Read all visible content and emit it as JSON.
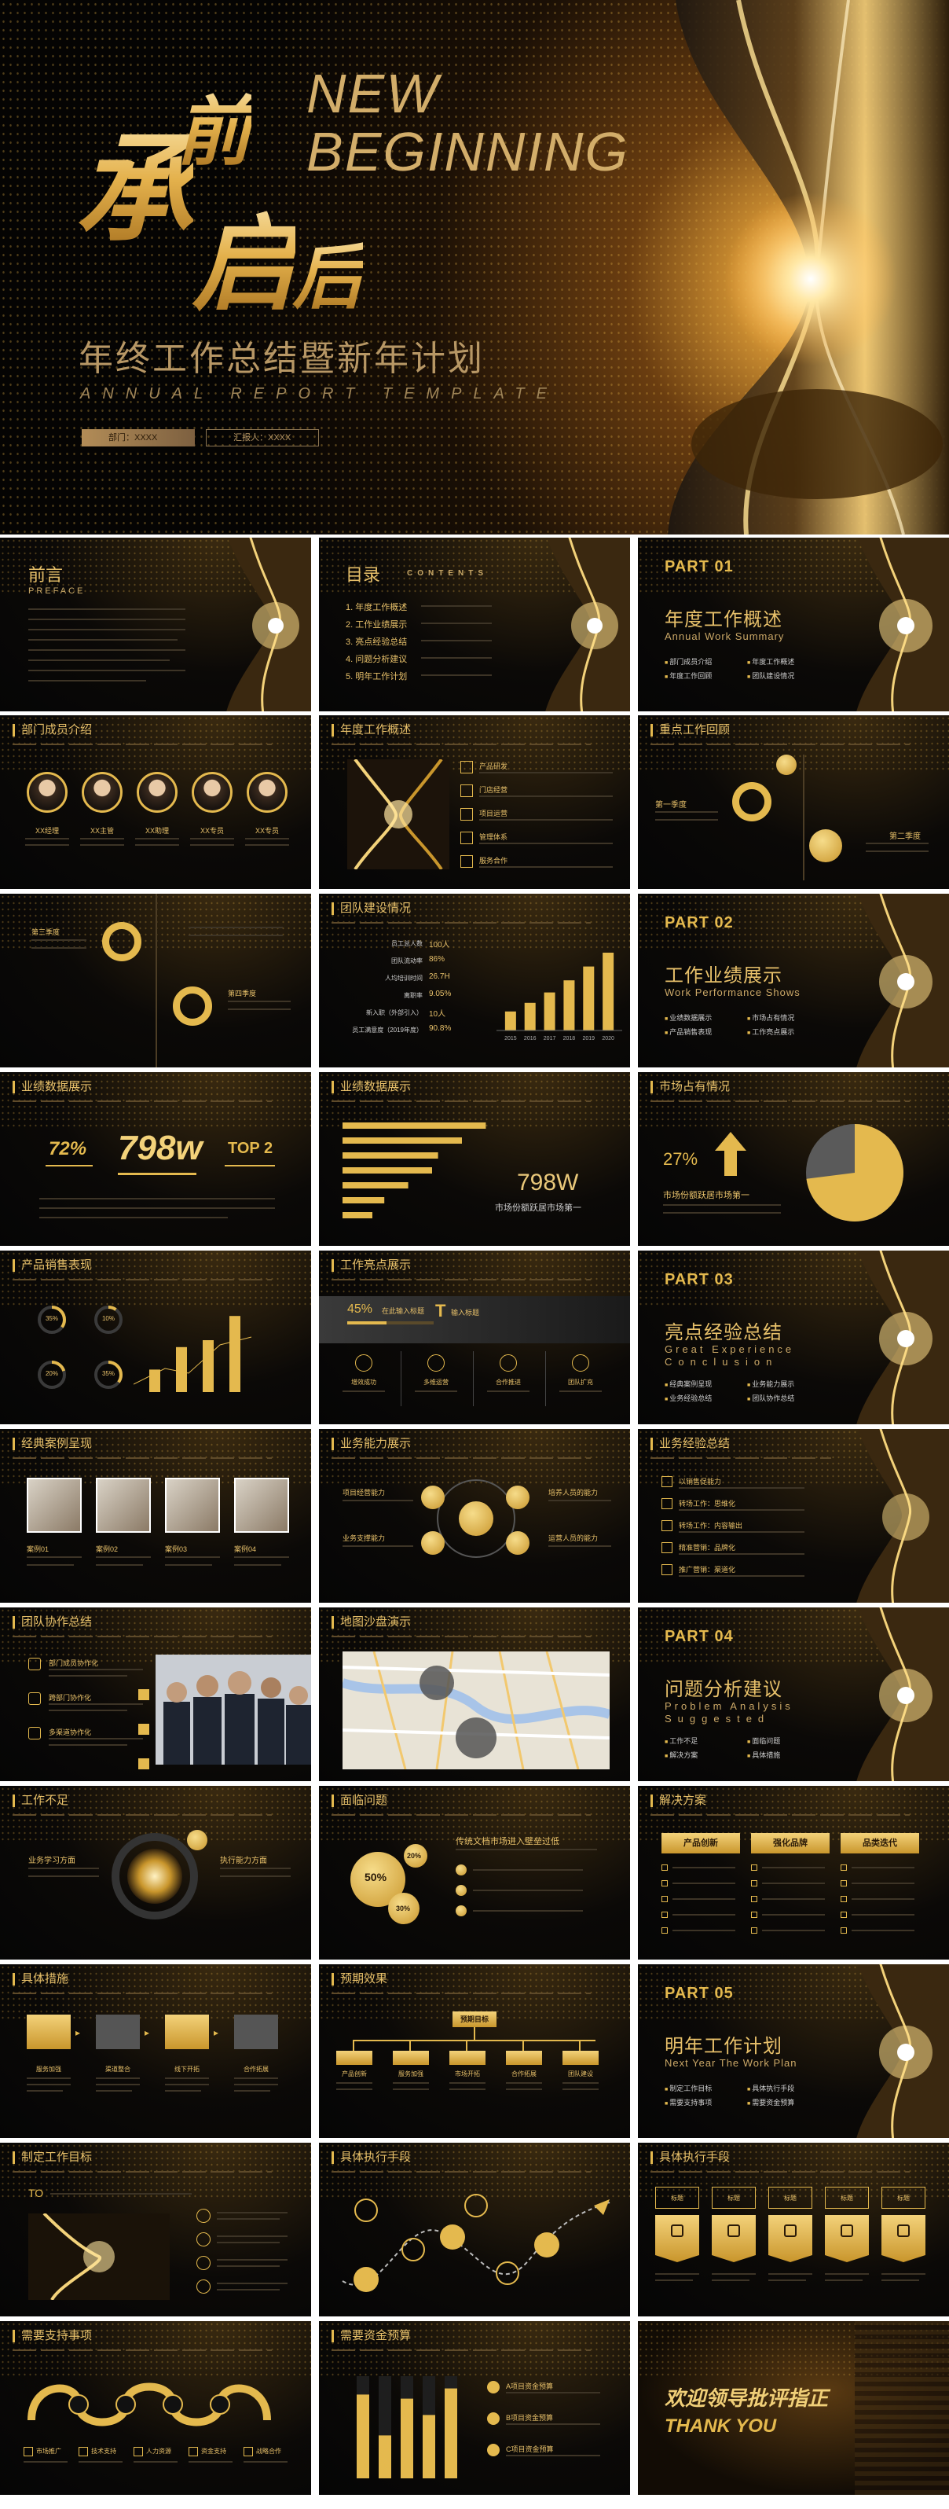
{
  "cover": {
    "cn_title_chars": [
      "承",
      "前",
      "启",
      "后"
    ],
    "en_title_line1": "NEW",
    "en_title_line2": "BEGINNING",
    "subtitle": "年终工作总结暨新年计划",
    "subtitle_en": "ANNUAL REPORT TEMPLATE",
    "tag_department": "部门：XXXX",
    "tag_reporter": "汇报人：XXXX"
  },
  "slides": {
    "preface": {
      "title": "前言",
      "subtitle": "PREFACE"
    },
    "toc": {
      "title": "目录",
      "title_en": "CONTENTS",
      "items": [
        "1. 年度工作概述",
        "2. 工作业绩展示",
        "3. 亮点经验总结",
        "4. 问题分析建议",
        "5. 明年工作计划"
      ]
    },
    "part01": {
      "label": "PART 01",
      "cn": "年度工作概述",
      "en": "Annual Work Summary",
      "bullets": [
        "部门成员介绍",
        "年度工作概述",
        "年度工作回顾",
        "团队建设情况"
      ]
    },
    "members": {
      "title": "部门成员介绍",
      "names": [
        "XX经理",
        "XX主管",
        "XX助理",
        "XX专员",
        "XX专员"
      ]
    },
    "overview": {
      "title": "年度工作概述",
      "items": [
        "产品研发",
        "门店经营",
        "项目运营",
        "管理体系",
        "服务合作"
      ]
    },
    "review": {
      "title": "重点工作回顾",
      "first": "第一季度",
      "second": "第二季度"
    },
    "review2": {
      "third": "第三季度",
      "fourth": "第四季度"
    },
    "team": {
      "title": "团队建设情况",
      "rows": [
        {
          "k": "员工总人数",
          "v": "100人"
        },
        {
          "k": "团队流动率",
          "v": "86%"
        },
        {
          "k": "人均培训时间",
          "v": "26.7H"
        },
        {
          "k": "离职率",
          "v": "9.05%"
        },
        {
          "k": "新入职（外部引入）",
          "v": "10人"
        },
        {
          "k": "员工满意度（2019年度）",
          "v": "90.8%"
        }
      ],
      "bars": [
        22,
        32,
        44,
        58,
        74,
        90
      ],
      "bar_labels": [
        "2015",
        "2016",
        "2017",
        "2018",
        "2019",
        "2020"
      ]
    },
    "part02": {
      "label": "PART 02",
      "cn": "工作业绩展示",
      "en": "Work Performance Shows",
      "bullets": [
        "业绩数据展示",
        "市场占有情况",
        "产品销售表现",
        "工作亮点展示"
      ]
    },
    "perf1": {
      "title": "业绩数据展示",
      "v1": "72%",
      "v2": "798w",
      "v3": "TOP 2"
    },
    "perf2": {
      "title": "业绩数据展示",
      "bars": [
        96,
        80,
        64,
        60,
        44,
        28,
        20
      ],
      "big": "798W",
      "caption": "市场份额跃居市场第一"
    },
    "market": {
      "title": "市场占有情况",
      "pct": "27%",
      "caption": "市场份额跃居市场第一",
      "pie_share": 0.73
    },
    "sales": {
      "title": "产品销售表现",
      "rings": [
        "35%",
        "10%",
        "20%",
        "35%"
      ],
      "bars": [
        26,
        52,
        60,
        88
      ],
      "ring_values": [
        0.35,
        0.1,
        0.2,
        0.35
      ]
    },
    "highlight": {
      "title": "工作亮点展示",
      "stat": "45%",
      "stat_label": "在此输入标题",
      "t_label": "T",
      "t_sub": "输入标题",
      "cols": [
        "增效成功",
        "多维运营",
        "合作推进",
        "团队扩充"
      ]
    },
    "part03": {
      "label": "PART 03",
      "cn": "亮点经验总结",
      "en1": "Great Experience",
      "en2": "Conclusion",
      "bullets": [
        "经典案例呈现",
        "业务能力展示",
        "业务经验总结",
        "团队协作总结"
      ]
    },
    "cases": {
      "title": "经典案例呈现",
      "labels": [
        "案例01",
        "案例02",
        "案例03",
        "案例04"
      ]
    },
    "ability": {
      "title": "业务能力展示",
      "left1": "项目经营能力",
      "left2": "业务支撑能力",
      "right1": "培养人员的能力",
      "right2": "运营人员的能力"
    },
    "experience": {
      "title": "业务经验总结",
      "items": [
        "以销售促能力",
        "转场工作：思维化",
        "转场工作：内容输出",
        "精准营销：品牌化",
        "推广营销：渠道化"
      ]
    },
    "part04": {
      "label": "PART 04",
      "cn": "问题分析建议",
      "en1": "Problem Analysis",
      "en2": "Suggested",
      "bullets": [
        "工作不足",
        "面临问题",
        "解决方案",
        "具体措施"
      ]
    },
    "teamwork": {
      "title": "团队协作总结",
      "items": [
        "部门成员协作化",
        "跨部门协作化",
        "多渠道协作化"
      ]
    },
    "map": {
      "title": "地图沙盘演示"
    },
    "shortfall": {
      "title": "工作不足",
      "left": "业务学习方面",
      "right": "执行能力方面"
    },
    "problems": {
      "title": "面临问题",
      "head": "传统文档市场进入壁垒过低",
      "p1": "50%",
      "p2": "20%",
      "p3": "30%"
    },
    "solutions": {
      "title": "解决方案",
      "cols": [
        "产品创新",
        "强化品牌",
        "品类迭代"
      ]
    },
    "measures": {
      "title": "具体措施",
      "steps": [
        "服务加强",
        "渠道整合",
        "线下开拓",
        "合作拓展"
      ]
    },
    "expected": {
      "title": "预期效果",
      "root": "预期目标",
      "leaves": [
        "产品创新",
        "服务加强",
        "市场开拓",
        "合作拓展",
        "团队建设"
      ]
    },
    "part05": {
      "label": "PART 05",
      "cn": "明年工作计划",
      "en": "Next Year The Work Plan",
      "bullets": [
        "制定工作目标",
        "具体执行手段",
        "需要支持事项",
        "需要资金预算"
      ]
    },
    "goals": {
      "title": "制定工作目标",
      "to": "TO"
    },
    "exec": {
      "title": "具体执行手段"
    },
    "exec2": {
      "title": "具体执行手段",
      "labels": [
        "标题",
        "标题",
        "标题",
        "标题",
        "标题"
      ]
    },
    "support": {
      "title": "需要支持事项",
      "labels": [
        "市场推广",
        "技术支持",
        "人力资源",
        "资金支持",
        "战略合作"
      ]
    },
    "budget": {
      "title": "需要资金预算",
      "bars": [
        0.82,
        0.42,
        0.78,
        0.62,
        0.88
      ],
      "items": [
        "A项目资金预算",
        "B项目资金预算",
        "C项目资金预算"
      ]
    },
    "thanks": {
      "cn": "欢迎领导批评指正",
      "en": "THANK YOU"
    }
  },
  "colors": {
    "gold": "#e4b94e",
    "gold_light": "#f3d27a",
    "gold_dark": "#c9962c",
    "bg": "#0b0907"
  },
  "icons": [
    "hourglass-icon",
    "document-icon",
    "gear-icon",
    "chart-icon",
    "thumb-up-icon",
    "lightbulb-icon",
    "target-icon",
    "rocket-icon"
  ]
}
